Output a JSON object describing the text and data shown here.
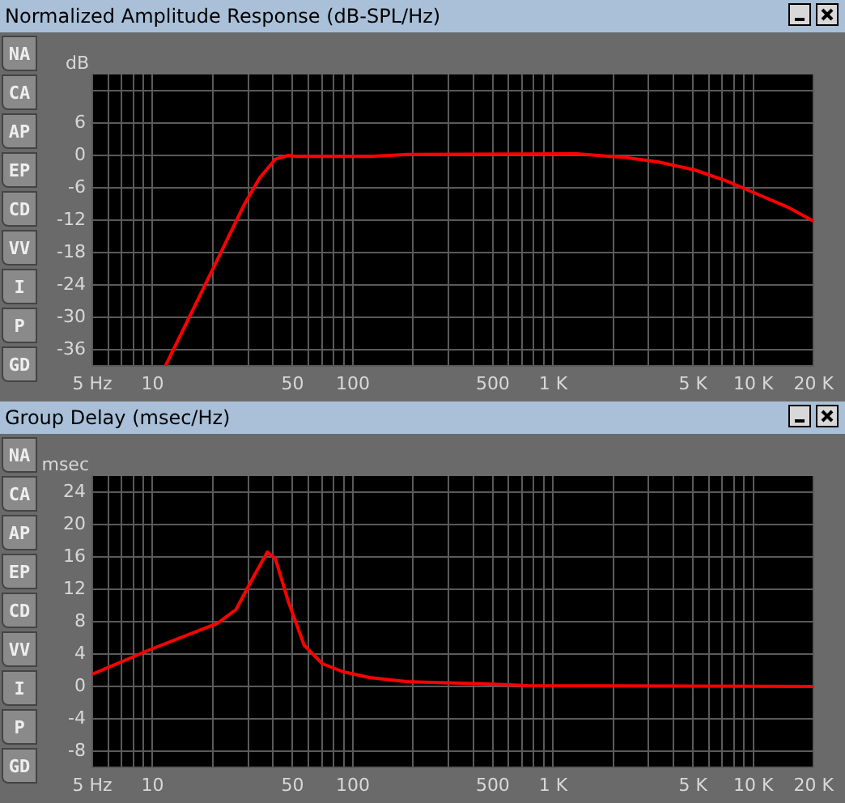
{
  "chart_data": [
    {
      "type": "line",
      "title": "Normalized Amplitude Response (dB-SPL/Hz)",
      "ylabel": "dB",
      "log": "x",
      "grid": true,
      "legend": false,
      "marker": "none",
      "line_style": "solid",
      "annotations": [
        "NA",
        "CA",
        "AP",
        "EP",
        "CD",
        "VV",
        "I",
        "P",
        "GD"
      ],
      "xlim": [
        5,
        20000
      ],
      "ylim": [
        -39,
        15
      ],
      "xticks": [
        {
          "value": 5,
          "label": "5 Hz"
        },
        {
          "value": 6,
          "label": null
        },
        {
          "value": 7,
          "label": null
        },
        {
          "value": 8,
          "label": null
        },
        {
          "value": 9,
          "label": null
        },
        10,
        {
          "value": 20,
          "label": null
        },
        {
          "value": 30,
          "label": null
        },
        {
          "value": 40,
          "label": null
        },
        50,
        {
          "value": 60,
          "label": null
        },
        {
          "value": 70,
          "label": null
        },
        {
          "value": 80,
          "label": null
        },
        {
          "value": 90,
          "label": null
        },
        100,
        {
          "value": 200,
          "label": null
        },
        {
          "value": 300,
          "label": null
        },
        {
          "value": 400,
          "label": null
        },
        500,
        {
          "value": 600,
          "label": null
        },
        {
          "value": 700,
          "label": null
        },
        {
          "value": 800,
          "label": null
        },
        {
          "value": 900,
          "label": null
        },
        {
          "value": 1000,
          "label": "1 K"
        },
        {
          "value": 2000,
          "label": null
        },
        {
          "value": 3000,
          "label": null
        },
        {
          "value": 4000,
          "label": null
        },
        {
          "value": 5000,
          "label": "5 K"
        },
        {
          "value": 6000,
          "label": null
        },
        {
          "value": 7000,
          "label": null
        },
        {
          "value": 8000,
          "label": null
        },
        {
          "value": 9000,
          "label": null
        },
        {
          "value": 10000,
          "label": "10 K"
        },
        {
          "value": 20000,
          "label": "20 K"
        }
      ],
      "yticks": [
        {
          "value": 12,
          "label": null
        },
        6,
        0,
        -6,
        -12,
        -18,
        -24,
        -30,
        -36
      ],
      "series": [
        {
          "color": "#ff0000",
          "x": [
            11.6,
            19.9,
            28.6,
            34.2,
            41,
            47.6,
            52,
            121,
            190,
            1312,
            2323,
            3340,
            5100,
            7310,
            10500,
            15070,
            20000
          ],
          "values": [
            -39,
            -21.2,
            -9.2,
            -4.2,
            -0.7,
            0,
            -0.2,
            -0.2,
            0.2,
            0.3,
            -0.4,
            -1.2,
            -2.7,
            -4.7,
            -7.2,
            -9.7,
            -12.2
          ]
        }
      ]
    },
    {
      "type": "line",
      "title": "Group Delay (msec/Hz)",
      "ylabel": "msec",
      "log": "x",
      "grid": true,
      "legend": false,
      "marker": "none",
      "line_style": "solid",
      "annotations": [
        "NA",
        "CA",
        "AP",
        "EP",
        "CD",
        "VV",
        "I",
        "P",
        "GD"
      ],
      "xlim": [
        5,
        20000
      ],
      "ylim": [
        -10,
        26
      ],
      "xticks": [
        {
          "value": 5,
          "label": "5 Hz"
        },
        {
          "value": 6,
          "label": null
        },
        {
          "value": 7,
          "label": null
        },
        {
          "value": 8,
          "label": null
        },
        {
          "value": 9,
          "label": null
        },
        10,
        {
          "value": 20,
          "label": null
        },
        {
          "value": 30,
          "label": null
        },
        {
          "value": 40,
          "label": null
        },
        50,
        {
          "value": 60,
          "label": null
        },
        {
          "value": 70,
          "label": null
        },
        {
          "value": 80,
          "label": null
        },
        {
          "value": 90,
          "label": null
        },
        100,
        {
          "value": 200,
          "label": null
        },
        {
          "value": 300,
          "label": null
        },
        {
          "value": 400,
          "label": null
        },
        500,
        {
          "value": 600,
          "label": null
        },
        {
          "value": 700,
          "label": null
        },
        {
          "value": 800,
          "label": null
        },
        {
          "value": 900,
          "label": null
        },
        {
          "value": 1000,
          "label": "1 K"
        },
        {
          "value": 2000,
          "label": null
        },
        {
          "value": 3000,
          "label": null
        },
        {
          "value": 4000,
          "label": null
        },
        {
          "value": 5000,
          "label": "5 K"
        },
        {
          "value": 6000,
          "label": null
        },
        {
          "value": 7000,
          "label": null
        },
        {
          "value": 8000,
          "label": null
        },
        {
          "value": 9000,
          "label": null
        },
        {
          "value": 10000,
          "label": "10 K"
        },
        {
          "value": 20000,
          "label": "20 K"
        }
      ],
      "yticks": [
        24,
        20,
        16,
        12,
        8,
        4,
        0,
        -4,
        -8
      ],
      "series": [
        {
          "color": "#ff0000",
          "x": [
            5,
            9.6,
            21.1,
            26.1,
            31.2,
            37.4,
            41,
            47.6,
            57.1,
            70.5,
            89.8,
            121,
            185,
            485,
            740,
            20000
          ],
          "values": [
            1.5,
            4.5,
            7.8,
            9.5,
            13.1,
            16.6,
            15.8,
            10.5,
            5.1,
            2.8,
            1.8,
            1.1,
            0.6,
            0.3,
            0.1,
            0
          ]
        }
      ]
    }
  ]
}
